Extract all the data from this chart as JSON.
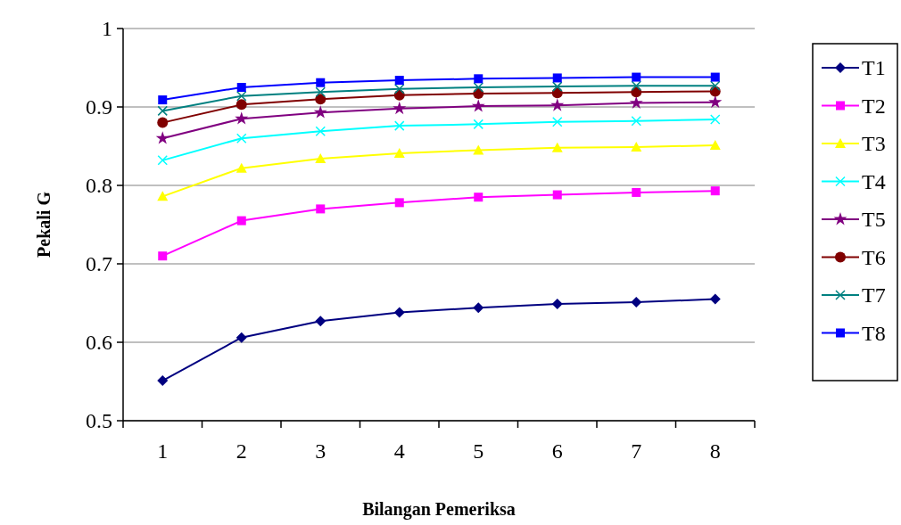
{
  "chart_data": {
    "type": "line",
    "xlabel": "Bilangan Pemeriksa",
    "ylabel": "Pekali G",
    "categories": [
      "1",
      "2",
      "3",
      "4",
      "5",
      "6",
      "7",
      "8"
    ],
    "ylim": [
      0.5,
      1
    ],
    "yticks": [
      {
        "value": 0.5,
        "label": "0.5"
      },
      {
        "value": 0.6,
        "label": "0.6"
      },
      {
        "value": 0.7,
        "label": "0.7"
      },
      {
        "value": 0.8,
        "label": "0.8"
      },
      {
        "value": 0.9,
        "label": "0.9"
      },
      {
        "value": 1,
        "label": "1"
      }
    ],
    "grid": "y",
    "legend": "right",
    "series": [
      {
        "name": "T1",
        "color": "#000080",
        "marker": "diamond",
        "values": [
          0.551,
          0.606,
          0.627,
          0.638,
          0.644,
          0.649,
          0.651,
          0.655
        ]
      },
      {
        "name": "T2",
        "color": "#ff00ff",
        "marker": "square",
        "values": [
          0.71,
          0.755,
          0.77,
          0.778,
          0.785,
          0.788,
          0.791,
          0.793
        ]
      },
      {
        "name": "T3",
        "color": "#ffff00",
        "marker": "triangle",
        "values": [
          0.786,
          0.822,
          0.834,
          0.841,
          0.845,
          0.848,
          0.849,
          0.851
        ]
      },
      {
        "name": "T4",
        "color": "#00ffff",
        "marker": "cross",
        "values": [
          0.832,
          0.86,
          0.869,
          0.876,
          0.878,
          0.881,
          0.882,
          0.884
        ]
      },
      {
        "name": "T5",
        "color": "#800080",
        "marker": "star",
        "values": [
          0.86,
          0.885,
          0.893,
          0.898,
          0.901,
          0.902,
          0.905,
          0.906
        ]
      },
      {
        "name": "T6",
        "color": "#800000",
        "marker": "circle",
        "values": [
          0.88,
          0.903,
          0.91,
          0.915,
          0.917,
          0.918,
          0.919,
          0.92
        ]
      },
      {
        "name": "T7",
        "color": "#008080",
        "marker": "cross",
        "values": [
          0.895,
          0.914,
          0.919,
          0.923,
          0.925,
          0.926,
          0.927,
          0.927
        ]
      },
      {
        "name": "T8",
        "color": "#0000ff",
        "marker": "square",
        "values": [
          0.909,
          0.925,
          0.931,
          0.934,
          0.936,
          0.937,
          0.938,
          0.938
        ]
      }
    ]
  }
}
